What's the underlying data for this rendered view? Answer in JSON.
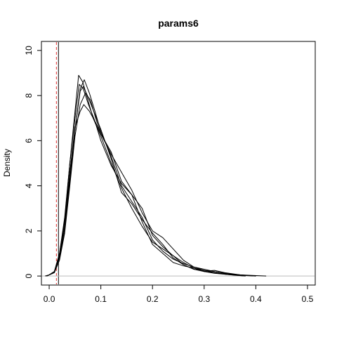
{
  "chart_data": {
    "type": "line",
    "title": "params6",
    "xlabel": "",
    "ylabel": "Density",
    "xlim": [
      -0.015,
      0.515
    ],
    "ylim": [
      -0.4,
      10.4
    ],
    "x_ticks": [
      0.0,
      0.1,
      0.2,
      0.3,
      0.4,
      0.5
    ],
    "x_tick_labels": [
      "0.0",
      "0.1",
      "0.2",
      "0.3",
      "0.4",
      "0.5"
    ],
    "y_ticks": [
      0,
      2,
      4,
      6,
      8,
      10
    ],
    "y_tick_labels": [
      "0",
      "2",
      "4",
      "6",
      "8",
      "10"
    ],
    "grid": false,
    "reference_lines": [
      {
        "x": 0.018,
        "style": "solid",
        "color": "#000000"
      },
      {
        "x": 0.014,
        "style": "dashed",
        "color": "#e03030"
      }
    ],
    "baseline": {
      "y": 0,
      "color": "#bbbbbb"
    },
    "series": [
      {
        "color": "#000000",
        "points": [
          [
            -0.008,
            0.0
          ],
          [
            0.0,
            0.05
          ],
          [
            0.01,
            0.2
          ],
          [
            0.02,
            1.0
          ],
          [
            0.03,
            2.5
          ],
          [
            0.04,
            5.0
          ],
          [
            0.05,
            7.3
          ],
          [
            0.057,
            8.9
          ],
          [
            0.065,
            8.6
          ],
          [
            0.075,
            7.8
          ],
          [
            0.085,
            7.0
          ],
          [
            0.1,
            6.2
          ],
          [
            0.12,
            5.0
          ],
          [
            0.14,
            3.9
          ],
          [
            0.16,
            3.0
          ],
          [
            0.18,
            2.2
          ],
          [
            0.2,
            1.5
          ],
          [
            0.22,
            1.2
          ],
          [
            0.24,
            0.9
          ],
          [
            0.26,
            0.6
          ],
          [
            0.28,
            0.35
          ],
          [
            0.3,
            0.2
          ],
          [
            0.32,
            0.12
          ],
          [
            0.34,
            0.08
          ],
          [
            0.36,
            0.04
          ],
          [
            0.38,
            0.0
          ]
        ]
      },
      {
        "color": "#000000",
        "points": [
          [
            -0.005,
            0.0
          ],
          [
            0.0,
            0.05
          ],
          [
            0.01,
            0.15
          ],
          [
            0.02,
            0.8
          ],
          [
            0.03,
            2.0
          ],
          [
            0.04,
            4.2
          ],
          [
            0.05,
            6.5
          ],
          [
            0.06,
            8.3
          ],
          [
            0.068,
            8.7
          ],
          [
            0.078,
            8.1
          ],
          [
            0.09,
            7.2
          ],
          [
            0.1,
            6.4
          ],
          [
            0.12,
            5.3
          ],
          [
            0.14,
            4.0
          ],
          [
            0.16,
            3.3
          ],
          [
            0.18,
            2.6
          ],
          [
            0.2,
            1.6
          ],
          [
            0.22,
            1.1
          ],
          [
            0.24,
            0.75
          ],
          [
            0.26,
            0.55
          ],
          [
            0.28,
            0.4
          ],
          [
            0.3,
            0.25
          ],
          [
            0.32,
            0.2
          ],
          [
            0.34,
            0.12
          ],
          [
            0.37,
            0.05
          ],
          [
            0.4,
            0.0
          ]
        ]
      },
      {
        "color": "#000000",
        "points": [
          [
            -0.005,
            0.0
          ],
          [
            0.0,
            0.05
          ],
          [
            0.01,
            0.15
          ],
          [
            0.02,
            0.7
          ],
          [
            0.03,
            1.9
          ],
          [
            0.04,
            4.0
          ],
          [
            0.05,
            6.2
          ],
          [
            0.06,
            7.6
          ],
          [
            0.07,
            8.1
          ],
          [
            0.08,
            7.8
          ],
          [
            0.09,
            7.0
          ],
          [
            0.1,
            6.3
          ],
          [
            0.12,
            5.5
          ],
          [
            0.14,
            4.2
          ],
          [
            0.16,
            3.6
          ],
          [
            0.18,
            3.0
          ],
          [
            0.2,
            1.8
          ],
          [
            0.22,
            1.3
          ],
          [
            0.24,
            0.9
          ],
          [
            0.26,
            0.5
          ],
          [
            0.28,
            0.3
          ],
          [
            0.3,
            0.22
          ],
          [
            0.32,
            0.25
          ],
          [
            0.34,
            0.15
          ],
          [
            0.37,
            0.05
          ],
          [
            0.42,
            0.0
          ]
        ]
      },
      {
        "color": "#000000",
        "points": [
          [
            -0.005,
            0.0
          ],
          [
            0.0,
            0.05
          ],
          [
            0.01,
            0.2
          ],
          [
            0.02,
            0.9
          ],
          [
            0.03,
            2.4
          ],
          [
            0.04,
            4.6
          ],
          [
            0.05,
            6.6
          ],
          [
            0.06,
            7.3
          ],
          [
            0.067,
            7.6
          ],
          [
            0.078,
            7.3
          ],
          [
            0.09,
            6.8
          ],
          [
            0.1,
            6.3
          ],
          [
            0.12,
            5.4
          ],
          [
            0.14,
            4.6
          ],
          [
            0.16,
            3.8
          ],
          [
            0.18,
            2.8
          ],
          [
            0.2,
            2.0
          ],
          [
            0.22,
            1.7
          ],
          [
            0.24,
            1.2
          ],
          [
            0.26,
            0.7
          ],
          [
            0.28,
            0.4
          ],
          [
            0.3,
            0.3
          ],
          [
            0.32,
            0.2
          ],
          [
            0.34,
            0.12
          ],
          [
            0.37,
            0.04
          ],
          [
            0.4,
            0.0
          ]
        ]
      },
      {
        "color": "#000000",
        "points": [
          [
            -0.005,
            0.0
          ],
          [
            0.0,
            0.05
          ],
          [
            0.01,
            0.2
          ],
          [
            0.02,
            1.0
          ],
          [
            0.03,
            2.6
          ],
          [
            0.04,
            5.0
          ],
          [
            0.05,
            7.0
          ],
          [
            0.058,
            8.5
          ],
          [
            0.066,
            8.3
          ],
          [
            0.076,
            7.6
          ],
          [
            0.088,
            6.9
          ],
          [
            0.1,
            6.0
          ],
          [
            0.12,
            4.9
          ],
          [
            0.14,
            4.1
          ],
          [
            0.16,
            3.6
          ],
          [
            0.18,
            2.4
          ],
          [
            0.2,
            1.4
          ],
          [
            0.22,
            1.0
          ],
          [
            0.24,
            0.6
          ],
          [
            0.26,
            0.45
          ],
          [
            0.28,
            0.35
          ],
          [
            0.3,
            0.25
          ],
          [
            0.32,
            0.15
          ],
          [
            0.34,
            0.08
          ],
          [
            0.36,
            0.03
          ],
          [
            0.38,
            0.0
          ]
        ]
      },
      {
        "color": "#000000",
        "points": [
          [
            -0.005,
            0.0
          ],
          [
            0.0,
            0.05
          ],
          [
            0.01,
            0.15
          ],
          [
            0.02,
            0.8
          ],
          [
            0.03,
            2.2
          ],
          [
            0.04,
            4.4
          ],
          [
            0.05,
            6.5
          ],
          [
            0.06,
            8.2
          ],
          [
            0.066,
            8.4
          ],
          [
            0.076,
            7.9
          ],
          [
            0.088,
            7.2
          ],
          [
            0.1,
            6.5
          ],
          [
            0.12,
            5.2
          ],
          [
            0.14,
            3.7
          ],
          [
            0.16,
            3.2
          ],
          [
            0.18,
            2.5
          ],
          [
            0.2,
            1.9
          ],
          [
            0.22,
            1.4
          ],
          [
            0.24,
            0.8
          ],
          [
            0.26,
            0.5
          ],
          [
            0.28,
            0.3
          ],
          [
            0.3,
            0.2
          ],
          [
            0.32,
            0.15
          ],
          [
            0.34,
            0.1
          ],
          [
            0.37,
            0.03
          ],
          [
            0.4,
            0.0
          ]
        ]
      }
    ]
  }
}
